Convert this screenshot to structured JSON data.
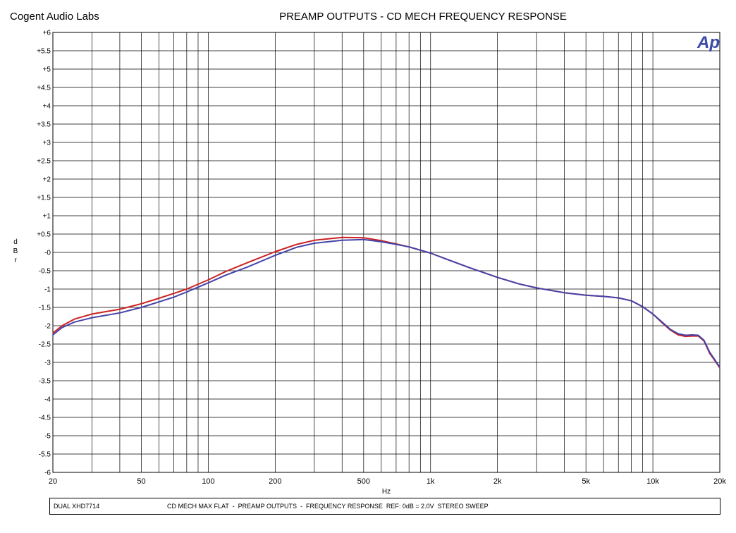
{
  "header": {
    "brand": "Cogent Audio Labs",
    "title": "PREAMP OUTPUTS - CD MECH FREQUENCY RESPONSE",
    "logo_text": "Ap"
  },
  "footer": {
    "left": "DUAL XHD7714",
    "right": "CD MECH MAX FLAT  -  PREAMP OUTPUTS  -  FREQUENCY RESPONSE  REF: 0dB = 2.0V  STEREO SWEEP"
  },
  "chart_data": {
    "type": "line",
    "title": "PREAMP OUTPUTS - CD MECH FREQUENCY RESPONSE",
    "xlabel": "Hz",
    "ylabel": "d B r",
    "xscale": "log",
    "xlim": [
      20,
      20000
    ],
    "ylim": [
      -6,
      6
    ],
    "grid": true,
    "x_ticks": [
      {
        "value": 20,
        "label": "20"
      },
      {
        "value": 50,
        "label": "50"
      },
      {
        "value": 100,
        "label": "100"
      },
      {
        "value": 200,
        "label": "200"
      },
      {
        "value": 500,
        "label": "500"
      },
      {
        "value": 1000,
        "label": "1k"
      },
      {
        "value": 2000,
        "label": "2k"
      },
      {
        "value": 5000,
        "label": "5k"
      },
      {
        "value": 10000,
        "label": "10k"
      },
      {
        "value": 20000,
        "label": "20k"
      }
    ],
    "y_ticks": [
      {
        "value": 6,
        "label": "+6"
      },
      {
        "value": 5.5,
        "label": "+5.5"
      },
      {
        "value": 5,
        "label": "+5"
      },
      {
        "value": 4.5,
        "label": "+4.5"
      },
      {
        "value": 4,
        "label": "+4"
      },
      {
        "value": 3.5,
        "label": "+3.5"
      },
      {
        "value": 3,
        "label": "+3"
      },
      {
        "value": 2.5,
        "label": "+2.5"
      },
      {
        "value": 2,
        "label": "+2"
      },
      {
        "value": 1.5,
        "label": "+1.5"
      },
      {
        "value": 1,
        "label": "+1"
      },
      {
        "value": 0.5,
        "label": "+0.5"
      },
      {
        "value": 0,
        "label": "-0"
      },
      {
        "value": -0.5,
        "label": "-0.5"
      },
      {
        "value": -1,
        "label": "-1"
      },
      {
        "value": -1.5,
        "label": "-1.5"
      },
      {
        "value": -2,
        "label": "-2"
      },
      {
        "value": -2.5,
        "label": "-2.5"
      },
      {
        "value": -3,
        "label": "-3"
      },
      {
        "value": -3.5,
        "label": "-3.5"
      },
      {
        "value": -4,
        "label": "-4"
      },
      {
        "value": -4.5,
        "label": "-4.5"
      },
      {
        "value": -5,
        "label": "-5"
      },
      {
        "value": -5.5,
        "label": "-5.5"
      },
      {
        "value": -6,
        "label": "-6"
      }
    ],
    "series": [
      {
        "color": "#cc2222",
        "x": [
          20,
          22,
          25,
          30,
          40,
          50,
          60,
          70,
          80,
          100,
          120,
          150,
          200,
          250,
          300,
          400,
          500,
          600,
          700,
          800,
          1000,
          1200,
          1500,
          2000,
          2500,
          3000,
          4000,
          5000,
          6000,
          7000,
          8000,
          9000,
          10000,
          11000,
          12000,
          13000,
          14000,
          15000,
          16000,
          17000,
          18000,
          19000,
          20000
        ],
        "y": [
          -2.2,
          -2.0,
          -1.82,
          -1.68,
          -1.55,
          -1.4,
          -1.25,
          -1.12,
          -1.0,
          -0.75,
          -0.52,
          -0.28,
          0.02,
          0.22,
          0.33,
          0.41,
          0.4,
          0.32,
          0.23,
          0.15,
          -0.02,
          -0.2,
          -0.42,
          -0.68,
          -0.86,
          -0.97,
          -1.1,
          -1.17,
          -1.2,
          -1.24,
          -1.32,
          -1.48,
          -1.68,
          -1.92,
          -2.12,
          -2.25,
          -2.29,
          -2.28,
          -2.28,
          -2.42,
          -2.75,
          -2.95,
          -3.15
        ]
      },
      {
        "color": "#4444aa",
        "x": [
          20,
          22,
          25,
          30,
          40,
          50,
          60,
          70,
          80,
          100,
          120,
          150,
          200,
          250,
          300,
          400,
          500,
          600,
          700,
          800,
          1000,
          1200,
          1500,
          2000,
          2500,
          3000,
          4000,
          5000,
          6000,
          7000,
          8000,
          9000,
          10000,
          11000,
          12000,
          13000,
          14000,
          15000,
          16000,
          17000,
          18000,
          19000,
          20000
        ],
        "y": [
          -2.25,
          -2.05,
          -1.9,
          -1.78,
          -1.65,
          -1.5,
          -1.35,
          -1.22,
          -1.08,
          -0.83,
          -0.62,
          -0.4,
          -0.08,
          0.14,
          0.25,
          0.33,
          0.35,
          0.29,
          0.22,
          0.15,
          -0.02,
          -0.2,
          -0.42,
          -0.68,
          -0.86,
          -0.97,
          -1.1,
          -1.17,
          -1.2,
          -1.24,
          -1.32,
          -1.48,
          -1.68,
          -1.9,
          -2.1,
          -2.22,
          -2.26,
          -2.25,
          -2.26,
          -2.4,
          -2.72,
          -2.93,
          -3.13
        ]
      }
    ]
  }
}
